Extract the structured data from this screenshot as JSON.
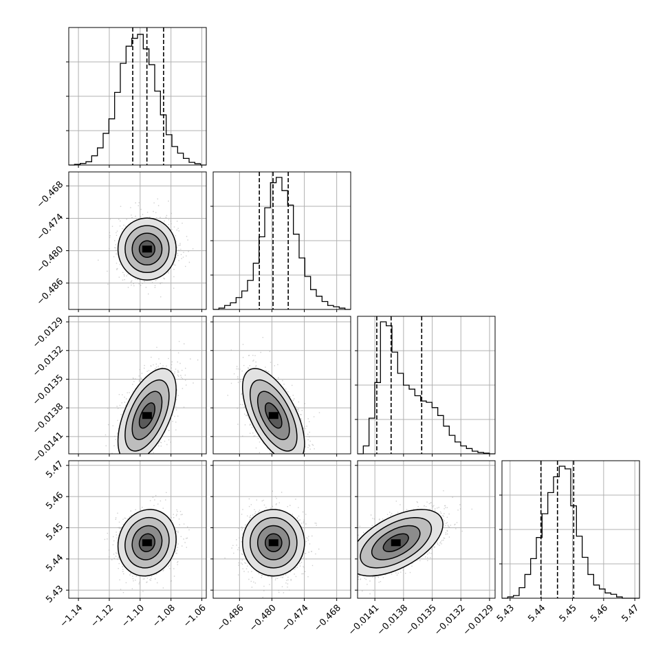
{
  "chart_data": {
    "type": "corner",
    "n_params": 4,
    "colors": {
      "line": "#000000",
      "grid": "#b0b0b0",
      "scatter": "#a6a6a6",
      "background": "#ffffff"
    },
    "grid": true,
    "params": [
      {
        "range": [
          -1.14627,
          -1.05711
        ],
        "ticks": [
          -1.14,
          -1.12,
          -1.1,
          -1.08,
          -1.06
        ],
        "tick_labels": [
          "−1.14",
          "−1.12",
          "−1.10",
          "−1.08",
          "−1.06"
        ],
        "quantiles": [
          -1.1048,
          -1.0956,
          -1.0848
        ]
      },
      {
        "range": [
          -0.49088,
          -0.46541
        ],
        "ticks": [
          -0.486,
          -0.48,
          -0.474,
          -0.468
        ],
        "tick_labels": [
          "−0.486",
          "−0.480",
          "−0.474",
          "−0.468"
        ],
        "quantiles": [
          -0.48233,
          -0.47979,
          -0.47698
        ]
      },
      {
        "range": [
          -0.014281,
          -0.012842
        ],
        "ticks": [
          -0.0141,
          -0.0138,
          -0.0135,
          -0.0132,
          -0.0129
        ],
        "tick_labels": [
          "−0.0141",
          "−0.0138",
          "−0.0135",
          "−0.0132",
          "−0.0129"
        ],
        "quantiles": [
          -0.01408,
          -0.01393,
          -0.01361
        ]
      },
      {
        "range": [
          5.4274,
          5.4715
        ],
        "ticks": [
          5.43,
          5.44,
          5.45,
          5.46,
          5.47
        ],
        "tick_labels": [
          "5.43",
          "5.44",
          "5.45",
          "5.46",
          "5.47"
        ],
        "quantiles": [
          5.4399,
          5.4452,
          5.4504
        ]
      }
    ],
    "histograms": [
      [
        0.0,
        0.005,
        0.012,
        0.025,
        0.07,
        0.13,
        0.24,
        0.35,
        0.55,
        0.77,
        0.9,
        0.96,
        0.99,
        0.88,
        0.76,
        0.56,
        0.38,
        0.23,
        0.14,
        0.09,
        0.05,
        0.02,
        0.01,
        0.0
      ],
      [
        0.0,
        0.01,
        0.03,
        0.05,
        0.09,
        0.14,
        0.22,
        0.35,
        0.55,
        0.77,
        0.96,
        1.0,
        0.9,
        0.79,
        0.57,
        0.39,
        0.25,
        0.15,
        0.1,
        0.06,
        0.03,
        0.02,
        0.01,
        0.0
      ],
      [
        0.0,
        0.06,
        0.27,
        0.54,
        1.0,
        0.97,
        0.77,
        0.61,
        0.52,
        0.49,
        0.44,
        0.4,
        0.39,
        0.35,
        0.29,
        0.21,
        0.14,
        0.09,
        0.06,
        0.04,
        0.02,
        0.01,
        0.005,
        0.0
      ],
      [
        0.0,
        0.01,
        0.02,
        0.08,
        0.18,
        0.3,
        0.46,
        0.64,
        0.8,
        0.92,
        1.0,
        0.98,
        0.7,
        0.47,
        0.31,
        0.18,
        0.1,
        0.07,
        0.04,
        0.03,
        0.01,
        0.0,
        0.0,
        0.0
      ]
    ],
    "pairs": [
      {
        "x": 0,
        "y": 1,
        "mx": -1.0955,
        "my": -0.4797,
        "sx": 0.0092,
        "sy": 0.0028,
        "rho": 0.0
      },
      {
        "x": 0,
        "y": 2,
        "mx": -1.0955,
        "my": -0.01388,
        "sx": 0.0092,
        "sy": 0.00024,
        "rho": 0.55
      },
      {
        "x": 1,
        "y": 2,
        "mx": -0.4797,
        "my": -0.01388,
        "sx": 0.0028,
        "sy": 0.00024,
        "rho": -0.6
      },
      {
        "x": 0,
        "y": 3,
        "mx": -1.0955,
        "my": 5.4452,
        "sx": 0.0092,
        "sy": 0.0052,
        "rho": 0.1
      },
      {
        "x": 1,
        "y": 3,
        "mx": -0.4797,
        "my": 5.4452,
        "sx": 0.0028,
        "sy": 0.0052,
        "rho": 0.0
      },
      {
        "x": 2,
        "y": 3,
        "mx": -0.01388,
        "my": 5.4452,
        "sx": 0.00024,
        "sy": 0.0052,
        "rho": 0.55
      }
    ]
  }
}
